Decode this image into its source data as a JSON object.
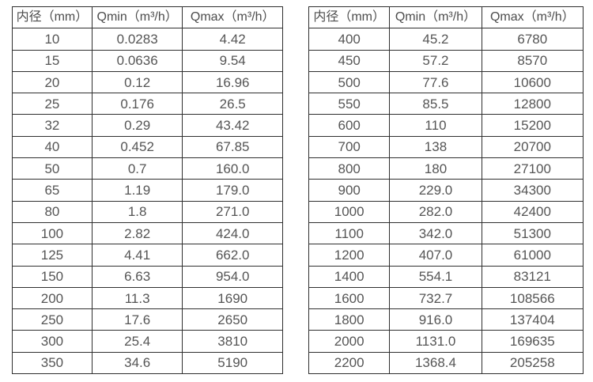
{
  "colors": {
    "background": "#ffffff",
    "border": "#2f2f2f",
    "header_text": "#4d4d4d",
    "cell_text": "#555555"
  },
  "tables": [
    {
      "id": "flow-rate-table-small-diameters",
      "headers": [
        "内径（mm）",
        "Qmin（m³/h）",
        "Qmax（m³/h）"
      ],
      "rows": [
        [
          "10",
          "0.0283",
          "4.42"
        ],
        [
          "15",
          "0.0636",
          "9.54"
        ],
        [
          "20",
          "0.12",
          "16.96"
        ],
        [
          "25",
          "0.176",
          "26.5"
        ],
        [
          "32",
          "0.29",
          "43.42"
        ],
        [
          "40",
          "0.452",
          "67.85"
        ],
        [
          "50",
          "0.7",
          "160.0"
        ],
        [
          "65",
          "1.19",
          "179.0"
        ],
        [
          "80",
          "1.8",
          "271.0"
        ],
        [
          "100",
          "2.82",
          "424.0"
        ],
        [
          "125",
          "4.41",
          "662.0"
        ],
        [
          "150",
          "6.63",
          "954.0"
        ],
        [
          "200",
          "11.3",
          "1690"
        ],
        [
          "250",
          "17.6",
          "2650"
        ],
        [
          "300",
          "25.4",
          "3810"
        ],
        [
          "350",
          "34.6",
          "5190"
        ]
      ]
    },
    {
      "id": "flow-rate-table-large-diameters",
      "headers": [
        "内径（mm）",
        "Qmin（m³/h）",
        "Qmax（m³/h）"
      ],
      "rows": [
        [
          "400",
          "45.2",
          "6780"
        ],
        [
          "450",
          "57.2",
          "8570"
        ],
        [
          "500",
          "77.6",
          "10600"
        ],
        [
          "550",
          "85.5",
          "12800"
        ],
        [
          "600",
          "110",
          "15200"
        ],
        [
          "700",
          "138",
          "20700"
        ],
        [
          "800",
          "180",
          "27100"
        ],
        [
          "900",
          "229.0",
          "34300"
        ],
        [
          "1000",
          "282.0",
          "42400"
        ],
        [
          "1100",
          "342.0",
          "51300"
        ],
        [
          "1200",
          "407.0",
          "61000"
        ],
        [
          "1400",
          "554.1",
          "83121"
        ],
        [
          "1600",
          "732.7",
          "108566"
        ],
        [
          "1800",
          "916.0",
          "137404"
        ],
        [
          "2000",
          "1131.0",
          "169635"
        ],
        [
          "2200",
          "1368.4",
          "205258"
        ]
      ]
    }
  ]
}
